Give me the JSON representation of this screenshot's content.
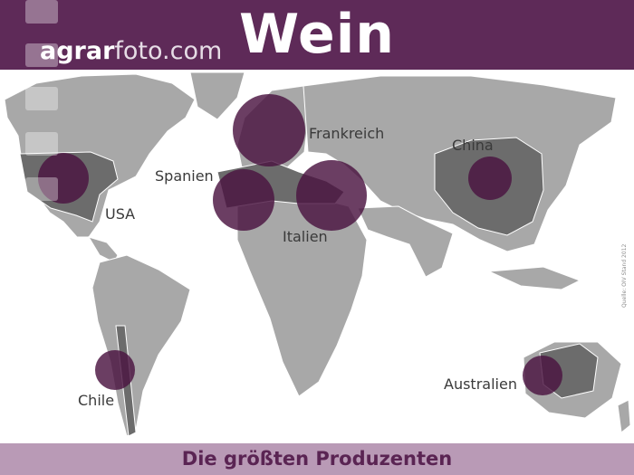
{
  "title": "Wein",
  "logo": {
    "part1": "agrar",
    "part2": "foto.com"
  },
  "footer": "Die größten Produzenten",
  "source": "Quelle: OIV Stand 2012",
  "colors": {
    "accent": "#5e2a58",
    "footer_band": "#b99ab6",
    "bubble": "#4a1441",
    "land": "#a8a8a8",
    "highlighted_land": "#6c6c6c"
  },
  "producers": [
    {
      "name": "Frankreich"
    },
    {
      "name": "Italien"
    },
    {
      "name": "Spanien"
    },
    {
      "name": "USA"
    },
    {
      "name": "China"
    },
    {
      "name": "Chile"
    },
    {
      "name": "Australien"
    }
  ]
}
